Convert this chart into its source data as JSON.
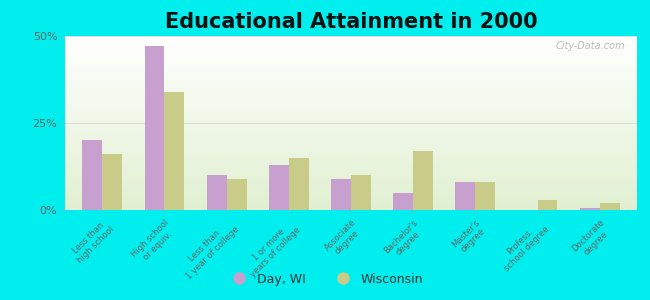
{
  "title": "Educational Attainment in 2000",
  "categories": [
    "Less than\nhigh school",
    "High school\nor equiv.",
    "Less than\n1 year of college",
    "1 or more\nyears of college",
    "Associate\ndegree",
    "Bachelor's\ndegree",
    "Master's\ndegree",
    "Profess.\nschool degree",
    "Doctorate\ndegree"
  ],
  "day_wi": [
    20.0,
    47.0,
    10.0,
    13.0,
    9.0,
    5.0,
    8.0,
    0.0,
    0.5
  ],
  "wisconsin": [
    16.0,
    34.0,
    9.0,
    15.0,
    10.0,
    17.0,
    8.0,
    3.0,
    2.0
  ],
  "day_color": "#c8a0d0",
  "wi_color": "#c8cc88",
  "bg_color": "#00eeee",
  "ylim": [
    0,
    50
  ],
  "yticks": [
    0,
    25,
    50
  ],
  "ytick_labels": [
    "0%",
    "25%",
    "50%"
  ],
  "title_fontsize": 15,
  "legend_day": "Day, WI",
  "legend_wi": "Wisconsin",
  "watermark": "City-Data.com"
}
